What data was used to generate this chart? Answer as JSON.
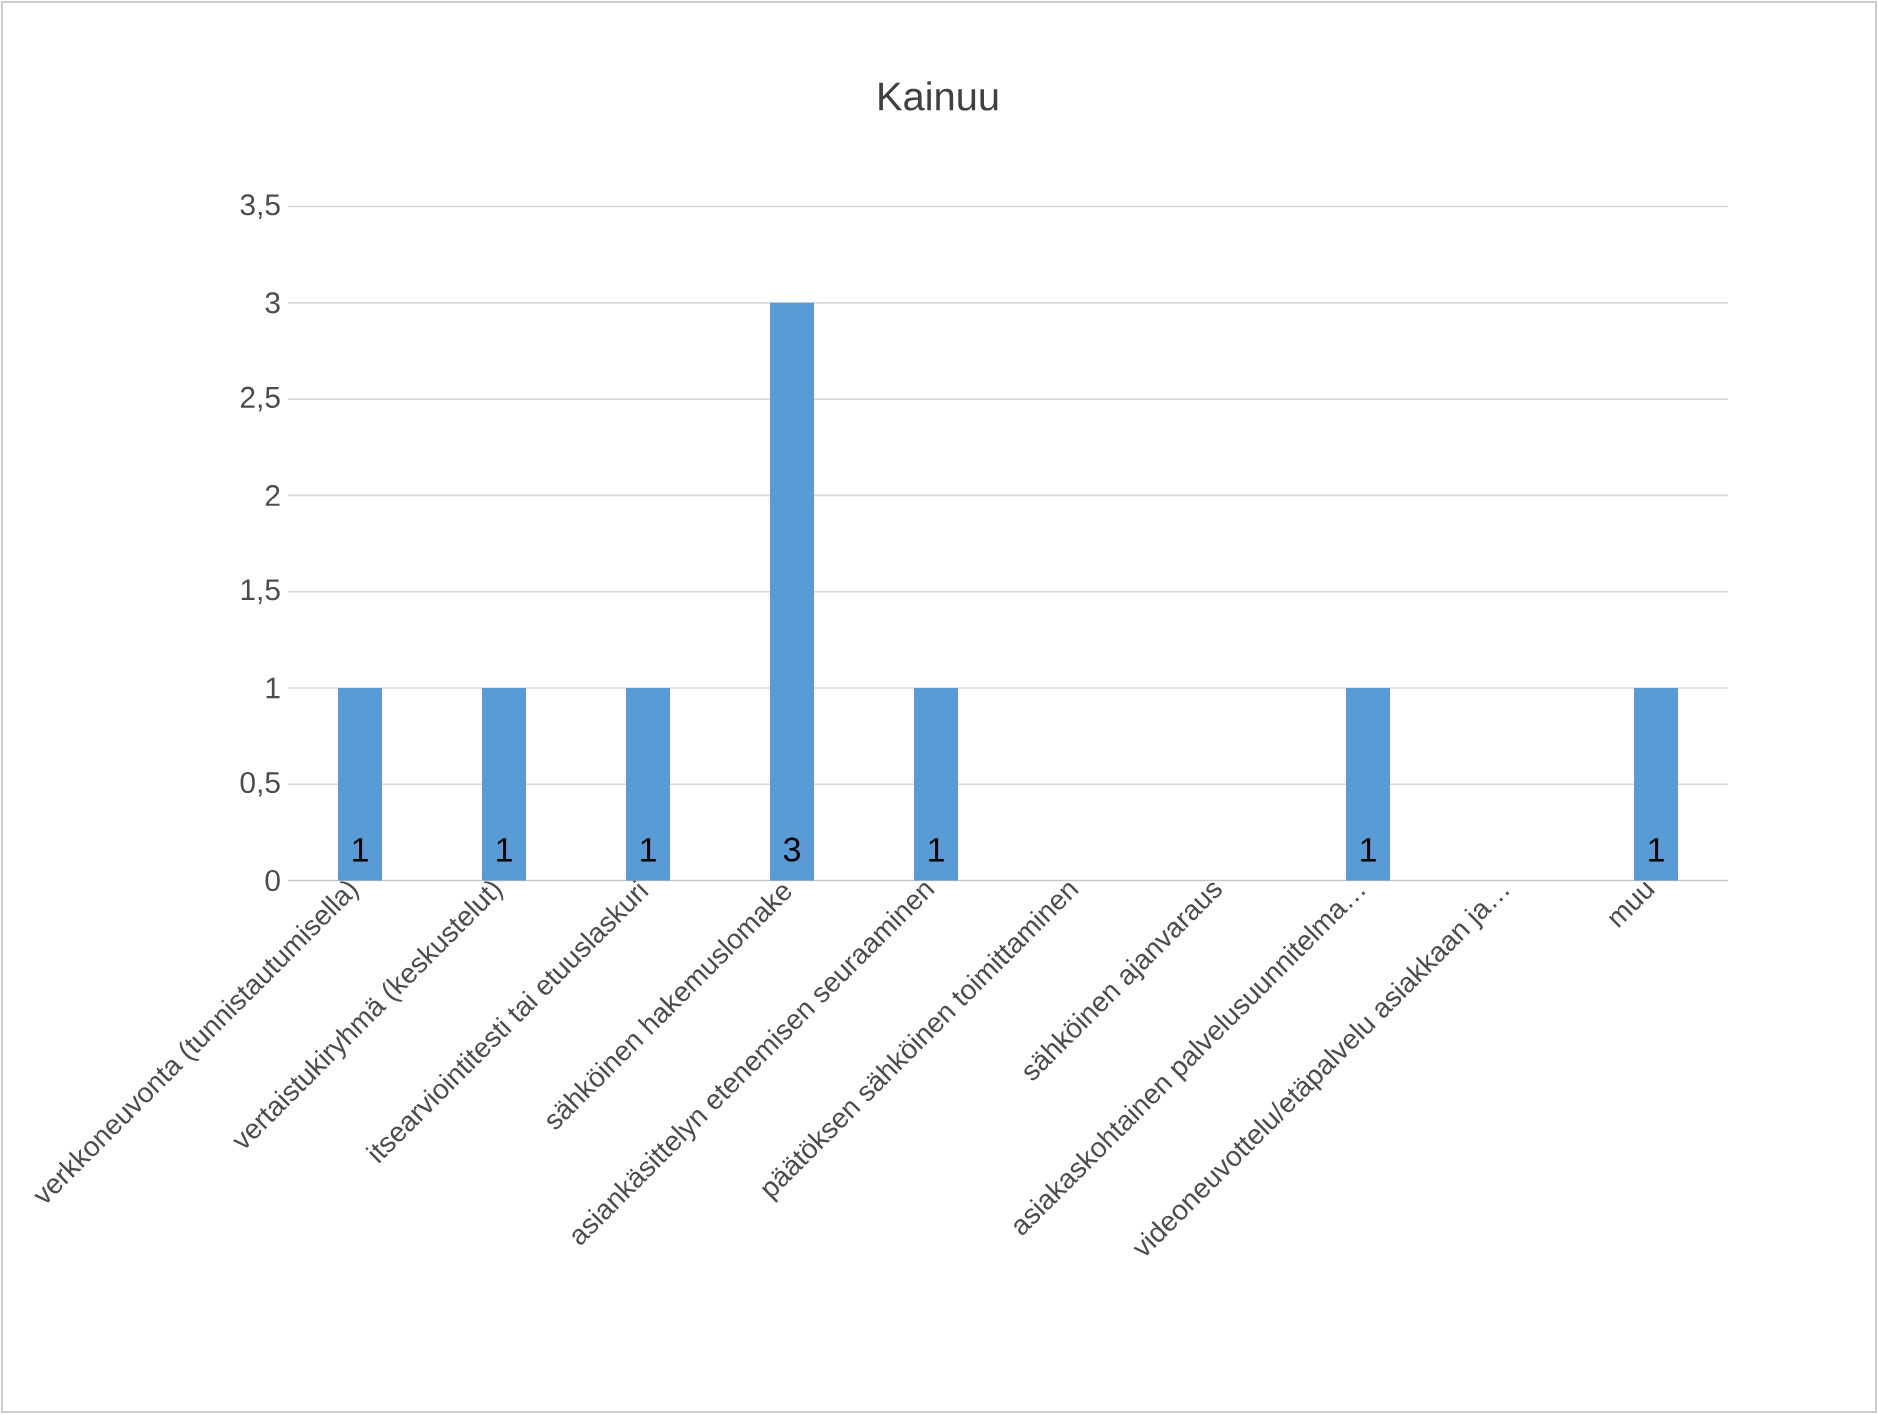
{
  "chart_data": {
    "type": "bar",
    "title": "Kainuu",
    "categories": [
      "verkkoneuvonta (tunnistautumisella)",
      "vertaistukiryhmä (keskustelut)",
      "itsearviointitesti tai etuuslaskuri",
      "sähköinen hakemuslomake",
      "asiankäsittelyn etenemisen seuraaminen",
      "päätöksen sähköinen toimittaminen",
      "sähköinen ajanvaraus",
      "asiakaskohtainen palvelusuunnitelma…",
      "videoneuvottelu/etäpalvelu asiakkaan ja…",
      "muu"
    ],
    "values": [
      1,
      1,
      1,
      3,
      1,
      0,
      0,
      1,
      0,
      1
    ],
    "value_labels": [
      "1",
      "1",
      "1",
      "3",
      "1",
      null,
      null,
      "1",
      null,
      "1"
    ],
    "color": "#5b9bd5",
    "ylim": [
      0,
      3.5
    ],
    "yticks": [
      0,
      {
        "value": 0.5,
        "label": "0,5"
      },
      1,
      {
        "value": 1.5,
        "label": "1,5"
      },
      2,
      {
        "value": 2.5,
        "label": "2,5"
      },
      3,
      {
        "value": 3.5,
        "label": "3,5"
      }
    ],
    "grid": "y"
  }
}
